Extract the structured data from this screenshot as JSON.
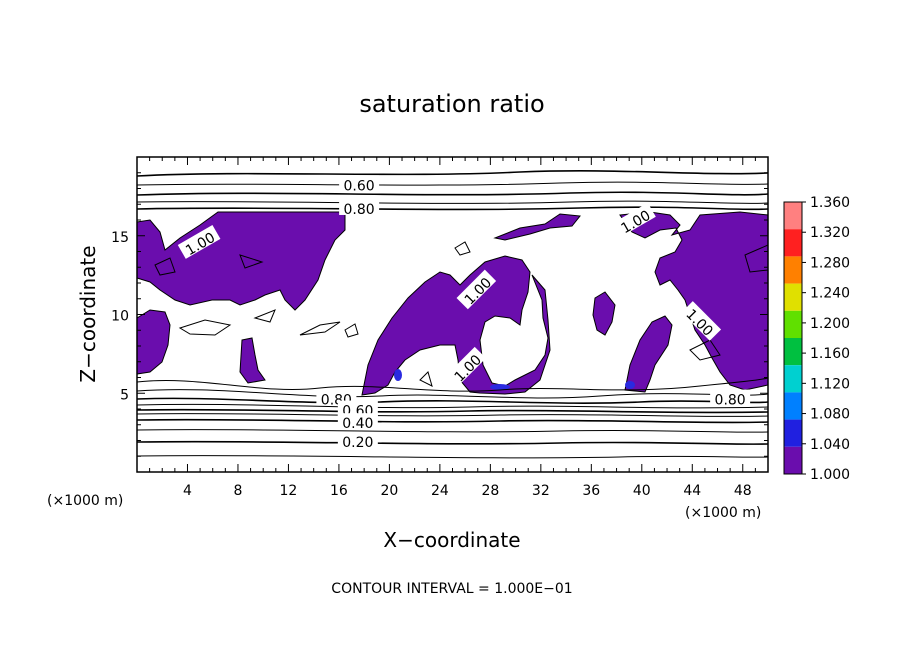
{
  "chart_data": {
    "type": "heatmap",
    "title": "saturation ratio",
    "xlabel": "X−coordinate",
    "ylabel": "Z−coordinate",
    "x_unit": "(×1000 m)",
    "z_unit": "(×1000 m)",
    "xlim": [
      0,
      50
    ],
    "ylim": [
      0,
      20
    ],
    "x_ticks": [
      4,
      8,
      12,
      16,
      20,
      24,
      28,
      32,
      36,
      40,
      44,
      48
    ],
    "y_ticks": [
      5,
      10,
      15
    ],
    "colorbar": {
      "labels": [
        "1.360",
        "1.320",
        "1.280",
        "1.240",
        "1.200",
        "1.160",
        "1.120",
        "1.080",
        "1.040",
        "1.000"
      ],
      "values": [
        1.36,
        1.32,
        1.28,
        1.24,
        1.2,
        1.16,
        1.12,
        1.08,
        1.04,
        1.0
      ],
      "colors": [
        "#ff8080",
        "#ff2020",
        "#ff8000",
        "#e0e000",
        "#60e000",
        "#00c040",
        "#00d0d0",
        "#0080ff",
        "#2020e0",
        "#6a0dad"
      ]
    },
    "contour_labels": [
      {
        "text": "0.60",
        "x": 17.6,
        "z": 18.2
      },
      {
        "text": "0.80",
        "x": 17.6,
        "z": 16.7
      },
      {
        "text": "1.00",
        "x": 5.0,
        "z": 14.5
      },
      {
        "text": "1.00",
        "x": 39.5,
        "z": 15.9
      },
      {
        "text": "1.00",
        "x": 27.0,
        "z": 11.5
      },
      {
        "text": "1.00",
        "x": 44.6,
        "z": 9.5
      },
      {
        "text": "1.00",
        "x": 26.2,
        "z": 6.6
      },
      {
        "text": "0.80",
        "x": 15.8,
        "z": 4.6
      },
      {
        "text": "0.60",
        "x": 17.5,
        "z": 3.9
      },
      {
        "text": "0.40",
        "x": 17.5,
        "z": 3.1
      },
      {
        "text": "0.20",
        "x": 17.5,
        "z": 1.9
      },
      {
        "text": "0.80",
        "x": 47.0,
        "z": 4.6
      }
    ],
    "contour_levels": [
      0.2,
      0.4,
      0.6,
      0.8,
      1.0
    ],
    "footer": "CONTOUR INTERVAL = 1.000E−01"
  }
}
